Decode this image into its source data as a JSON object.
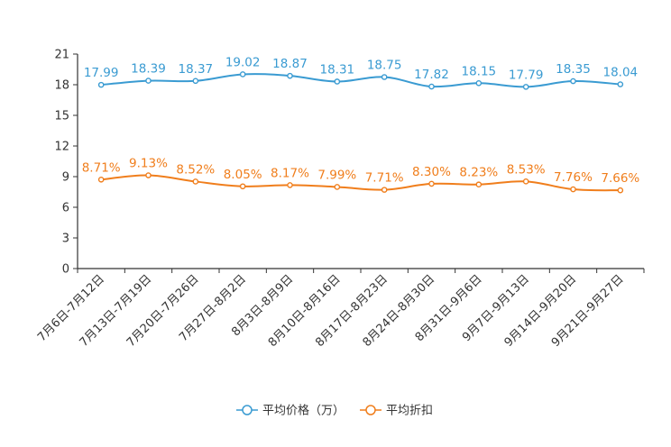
{
  "chart_data": {
    "type": "line",
    "title": "",
    "xlabel": "",
    "ylabel": "",
    "ylim": [
      0,
      21
    ],
    "yticks": [
      0,
      3,
      6,
      9,
      12,
      15,
      18,
      21
    ],
    "grid": false,
    "legend_position": "bottom-center",
    "categories": [
      "7月6日-7月12日",
      "7月13日-7月19日",
      "7月20日-7月26日",
      "7月27日-8月2日",
      "8月3日-8月9日",
      "8月10日-8月16日",
      "8月17日-8月23日",
      "8月24日-8月30日",
      "8月31日-9月6日",
      "9月7日-9月13日",
      "9月14日-9月20日",
      "9月21日-9月27日"
    ],
    "series": [
      {
        "name": "平均价格（万）",
        "color": "#3a9bd2",
        "values": [
          17.99,
          18.39,
          18.37,
          19.02,
          18.87,
          18.31,
          18.75,
          17.82,
          18.15,
          17.79,
          18.35,
          18.04
        ],
        "labels": [
          "17.99",
          "18.39",
          "18.37",
          "19.02",
          "18.87",
          "18.31",
          "18.75",
          "17.82",
          "18.15",
          "17.79",
          "18.35",
          "18.04"
        ]
      },
      {
        "name": "平均折扣",
        "color": "#f07e1c",
        "values": [
          8.71,
          9.13,
          8.52,
          8.05,
          8.17,
          7.99,
          7.71,
          8.3,
          8.23,
          8.53,
          7.76,
          7.66
        ],
        "labels": [
          "8.71%",
          "9.13%",
          "8.52%",
          "8.05%",
          "8.17%",
          "7.99%",
          "7.71%",
          "8.30%",
          "8.23%",
          "8.53%",
          "7.76%",
          "7.66%"
        ]
      }
    ]
  }
}
